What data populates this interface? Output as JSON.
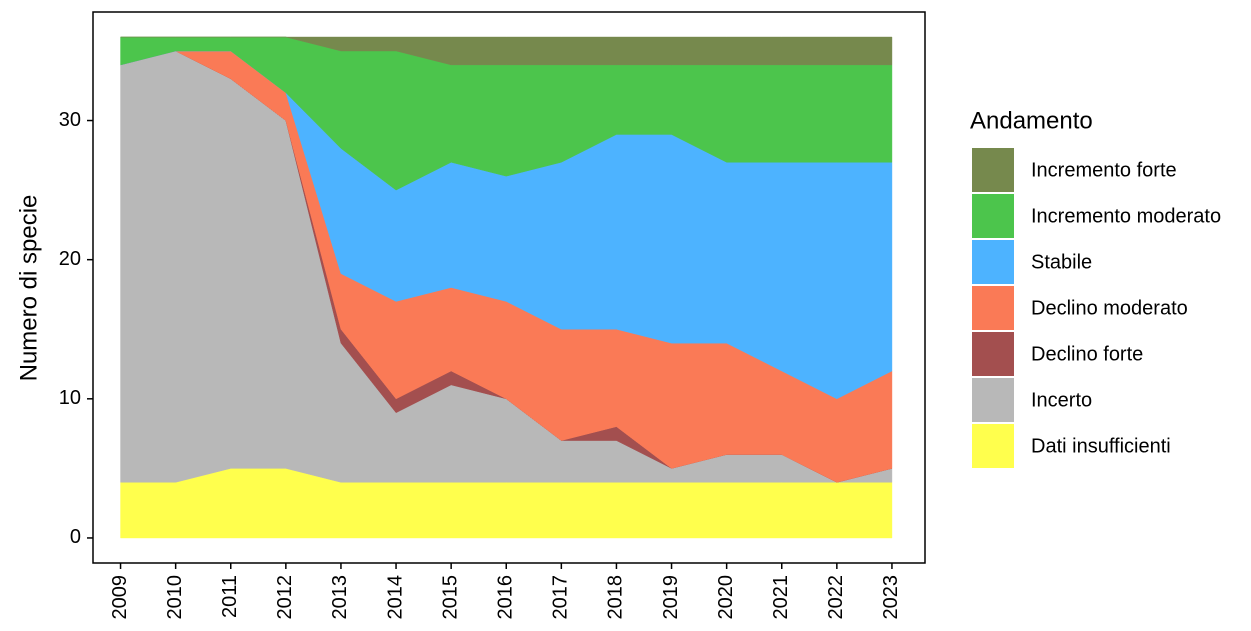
{
  "chart_data": {
    "type": "stacked_area",
    "y_label": "Numero di specie",
    "legend_title": "Andamento",
    "legend_position": "right",
    "x": [
      2009,
      2010,
      2011,
      2012,
      2013,
      2014,
      2015,
      2016,
      2017,
      2018,
      2019,
      2020,
      2021,
      2022,
      2023
    ],
    "xlim": [
      2008.5,
      2023.6
    ],
    "xticks": [
      2009,
      2010,
      2011,
      2012,
      2013,
      2014,
      2015,
      2016,
      2017,
      2018,
      2019,
      2020,
      2021,
      2022,
      2023
    ],
    "ylim": [
      -1.8,
      37.8
    ],
    "yticks": [
      0,
      10,
      20,
      30
    ],
    "grid": false,
    "series": [
      {
        "name": "Dati insufficienti",
        "color": "#ffff4d",
        "values": [
          4,
          4,
          5,
          5,
          4,
          4,
          4,
          4,
          4,
          4,
          4,
          4,
          4,
          4,
          4
        ]
      },
      {
        "name": "Incerto",
        "color": "#b8b8b8",
        "values": [
          30,
          31,
          28,
          25,
          10,
          5,
          7,
          6,
          3,
          3,
          1,
          2,
          2,
          0,
          1
        ]
      },
      {
        "name": "Declino forte",
        "color": "#a34f4f",
        "values": [
          0,
          0,
          0,
          0,
          1,
          1,
          1,
          0,
          0,
          1,
          0,
          0,
          0,
          0,
          0
        ]
      },
      {
        "name": "Declino moderato",
        "color": "#fa7a56",
        "values": [
          0,
          0,
          2,
          2,
          4,
          7,
          6,
          7,
          8,
          7,
          9,
          8,
          6,
          6,
          7
        ]
      },
      {
        "name": "Stabile",
        "color": "#4db3ff",
        "values": [
          0,
          0,
          0,
          0,
          9,
          8,
          9,
          9,
          12,
          14,
          15,
          13,
          15,
          17,
          15
        ]
      },
      {
        "name": "Incremento moderato",
        "color": "#4cc54c",
        "values": [
          2,
          1,
          1,
          4,
          7,
          10,
          7,
          8,
          7,
          5,
          5,
          7,
          7,
          7,
          7
        ]
      },
      {
        "name": "Incremento forte",
        "color": "#76894d",
        "values": [
          0,
          0,
          0,
          0,
          1,
          1,
          2,
          2,
          2,
          2,
          2,
          2,
          2,
          2,
          2
        ]
      }
    ]
  }
}
